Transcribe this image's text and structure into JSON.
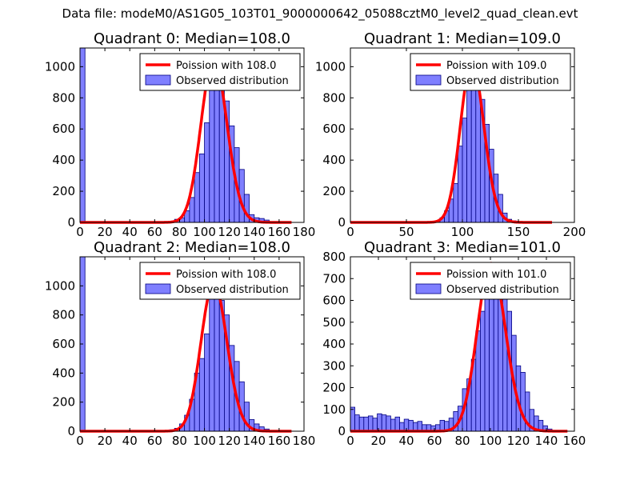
{
  "suptitle": "Data file: modeM0/AS1G05_103T01_9000000642_05088cztM0_level2_quad_clean.evt",
  "colors": {
    "bar_fill": "#7f7fff",
    "bar_edge": "#000080",
    "curve": "#ff0000"
  },
  "chart_data": [
    {
      "type": "bar",
      "title": "Quadrant 0: Median=108.0",
      "xlim": [
        0,
        180
      ],
      "ylim": [
        0,
        1120
      ],
      "xticks": [
        0,
        20,
        40,
        60,
        80,
        100,
        120,
        140,
        160,
        180
      ],
      "yticks": [
        0,
        200,
        400,
        600,
        800,
        1000
      ],
      "legend": [
        "Poission with 108.0",
        "Observed distribution"
      ],
      "median": 108.0,
      "bin_width": 4,
      "bins": [
        [
          0,
          1120
        ],
        [
          72,
          5
        ],
        [
          76,
          20
        ],
        [
          80,
          30
        ],
        [
          84,
          75
        ],
        [
          88,
          160
        ],
        [
          92,
          320
        ],
        [
          96,
          440
        ],
        [
          100,
          640
        ],
        [
          104,
          970
        ],
        [
          108,
          1010
        ],
        [
          112,
          860
        ],
        [
          116,
          780
        ],
        [
          120,
          620
        ],
        [
          124,
          480
        ],
        [
          128,
          340
        ],
        [
          132,
          180
        ],
        [
          136,
          50
        ],
        [
          140,
          30
        ],
        [
          144,
          25
        ],
        [
          148,
          15
        ],
        [
          152,
          5
        ]
      ],
      "curve_x": [
        0,
        170
      ]
    },
    {
      "type": "bar",
      "title": "Quadrant 1: Median=109.0",
      "xlim": [
        0,
        200
      ],
      "ylim": [
        0,
        1120
      ],
      "xticks": [
        0,
        50,
        100,
        150,
        200
      ],
      "yticks": [
        0,
        200,
        400,
        600,
        800,
        1000
      ],
      "legend": [
        "Poission with 109.0",
        "Observed distribution"
      ],
      "median": 109.0,
      "bin_width": 4,
      "bins": [
        [
          76,
          10
        ],
        [
          80,
          30
        ],
        [
          84,
          75
        ],
        [
          88,
          150
        ],
        [
          92,
          250
        ],
        [
          96,
          490
        ],
        [
          100,
          670
        ],
        [
          104,
          900
        ],
        [
          108,
          990
        ],
        [
          112,
          890
        ],
        [
          116,
          790
        ],
        [
          120,
          630
        ],
        [
          124,
          470
        ],
        [
          128,
          310
        ],
        [
          132,
          180
        ],
        [
          136,
          60
        ],
        [
          140,
          20
        ],
        [
          144,
          10
        ]
      ],
      "curve_x": [
        0,
        180
      ]
    },
    {
      "type": "bar",
      "title": "Quadrant 2: Median=108.0",
      "xlim": [
        0,
        180
      ],
      "ylim": [
        0,
        1200
      ],
      "xticks": [
        0,
        20,
        40,
        60,
        80,
        100,
        120,
        140,
        160,
        180
      ],
      "yticks": [
        0,
        200,
        400,
        600,
        800,
        1000
      ],
      "legend": [
        "Poission with 108.0",
        "Observed distribution"
      ],
      "median": 108.0,
      "bin_width": 4,
      "bins": [
        [
          0,
          1200
        ],
        [
          68,
          5
        ],
        [
          72,
          10
        ],
        [
          76,
          20
        ],
        [
          80,
          50
        ],
        [
          84,
          110
        ],
        [
          88,
          220
        ],
        [
          92,
          400
        ],
        [
          96,
          500
        ],
        [
          100,
          670
        ],
        [
          104,
          960
        ],
        [
          108,
          980
        ],
        [
          112,
          900
        ],
        [
          116,
          800
        ],
        [
          120,
          590
        ],
        [
          124,
          480
        ],
        [
          128,
          340
        ],
        [
          132,
          200
        ],
        [
          136,
          80
        ],
        [
          140,
          50
        ],
        [
          144,
          30
        ],
        [
          148,
          15
        ]
      ],
      "curve_x": [
        0,
        170
      ]
    },
    {
      "type": "bar",
      "title": "Quadrant 3: Median=101.0",
      "xlim": [
        0,
        160
      ],
      "ylim": [
        0,
        800
      ],
      "xticks": [
        0,
        20,
        40,
        60,
        80,
        100,
        120,
        140,
        160
      ],
      "yticks": [
        0,
        100,
        200,
        300,
        400,
        500,
        600,
        700,
        800
      ],
      "legend": [
        "Poission with 101.0",
        "Observed distribution"
      ],
      "median": 101.0,
      "bin_width": 3.2,
      "bins": [
        [
          0,
          110
        ],
        [
          3.2,
          75
        ],
        [
          6.4,
          65
        ],
        [
          9.6,
          65
        ],
        [
          12.8,
          70
        ],
        [
          16,
          60
        ],
        [
          19.2,
          80
        ],
        [
          22.4,
          75
        ],
        [
          25.6,
          70
        ],
        [
          28.8,
          55
        ],
        [
          32,
          65
        ],
        [
          35.2,
          40
        ],
        [
          38.4,
          55
        ],
        [
          41.6,
          50
        ],
        [
          44.8,
          40
        ],
        [
          48,
          45
        ],
        [
          51.2,
          30
        ],
        [
          54.4,
          30
        ],
        [
          57.6,
          25
        ],
        [
          60.8,
          30
        ],
        [
          64,
          50
        ],
        [
          67.2,
          45
        ],
        [
          70.4,
          60
        ],
        [
          73.6,
          90
        ],
        [
          76.8,
          115
        ],
        [
          80,
          195
        ],
        [
          83.2,
          240
        ],
        [
          86.4,
          330
        ],
        [
          89.6,
          460
        ],
        [
          92.8,
          550
        ],
        [
          96,
          740
        ],
        [
          99.2,
          720
        ],
        [
          102.4,
          660
        ],
        [
          105.6,
          700
        ],
        [
          108.8,
          720
        ],
        [
          112,
          550
        ],
        [
          115.2,
          440
        ],
        [
          118.4,
          300
        ],
        [
          121.6,
          270
        ],
        [
          124.8,
          180
        ],
        [
          128,
          100
        ],
        [
          131.2,
          70
        ],
        [
          134.4,
          50
        ],
        [
          137.6,
          25
        ],
        [
          140.8,
          10
        ]
      ],
      "curve_x": [
        0,
        155
      ]
    }
  ]
}
